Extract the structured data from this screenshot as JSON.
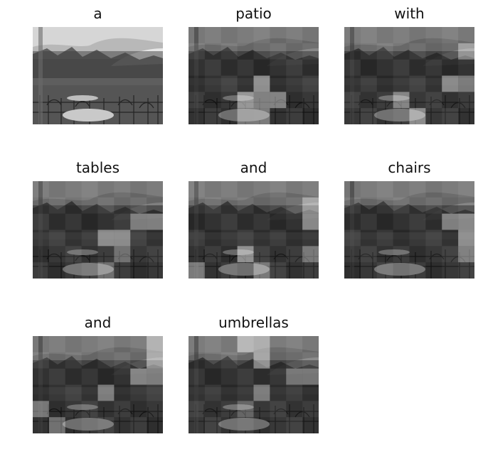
{
  "figure": {
    "panels": [
      {
        "caption_word": "a",
        "highlight": []
      },
      {
        "caption_word": "patio",
        "highlight": [
          [
            3,
            4
          ],
          [
            4,
            3
          ],
          [
            4,
            4
          ],
          [
            5,
            4
          ],
          [
            3,
            5
          ],
          [
            4,
            5
          ]
        ]
      },
      {
        "caption_word": "with",
        "highlight": [
          [
            4,
            5
          ],
          [
            3,
            4
          ],
          [
            6,
            3
          ],
          [
            7,
            3
          ],
          [
            7,
            1
          ]
        ]
      },
      {
        "caption_word": "tables",
        "highlight": [
          [
            4,
            3
          ],
          [
            5,
            3
          ],
          [
            6,
            2
          ],
          [
            7,
            2
          ],
          [
            5,
            4
          ],
          [
            4,
            5
          ]
        ]
      },
      {
        "caption_word": "and",
        "highlight": [
          [
            3,
            4
          ],
          [
            7,
            1
          ],
          [
            7,
            2
          ],
          [
            7,
            4
          ],
          [
            4,
            5
          ],
          [
            0,
            5
          ]
        ]
      },
      {
        "caption_word": "chairs",
        "highlight": [
          [
            7,
            2
          ],
          [
            7,
            3
          ],
          [
            7,
            4
          ],
          [
            6,
            2
          ]
        ]
      },
      {
        "caption_word": "and",
        "highlight": [
          [
            7,
            0
          ],
          [
            7,
            1
          ],
          [
            7,
            2
          ],
          [
            6,
            2
          ],
          [
            4,
            3
          ],
          [
            0,
            4
          ],
          [
            1,
            5
          ]
        ]
      },
      {
        "caption_word": "umbrellas",
        "highlight": [
          [
            3,
            0
          ],
          [
            4,
            0
          ],
          [
            4,
            1
          ],
          [
            6,
            2
          ],
          [
            7,
            2
          ],
          [
            4,
            3
          ],
          [
            3,
            4
          ]
        ]
      }
    ]
  }
}
